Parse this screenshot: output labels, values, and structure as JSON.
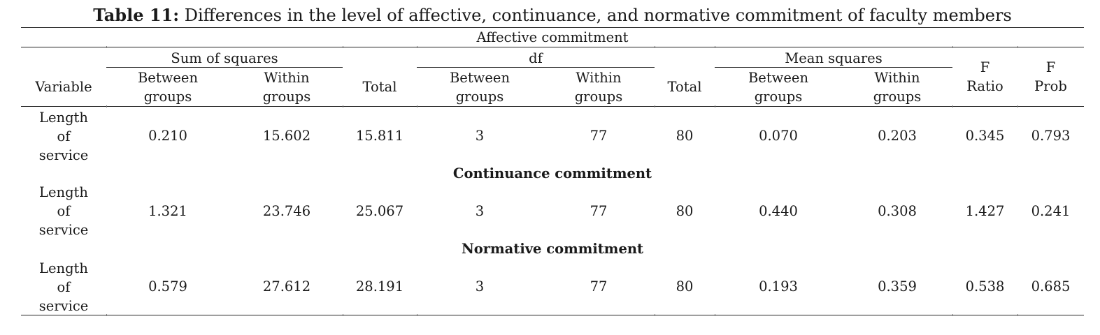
{
  "caption": {
    "label": "Table 11:",
    "text": "Differences in the level of affective, continuance, and normative commitment of faculty members"
  },
  "header": {
    "section_title": "Affective commitment",
    "variable": "Variable",
    "sum_of_squares": "Sum of squares",
    "df": "df",
    "mean_squares": "Mean squares",
    "between_1": "Between",
    "between_2": "groups",
    "within_1": "Within",
    "within_2": "groups",
    "total": "Total",
    "f_ratio_1": "F",
    "f_ratio_2": "Ratio",
    "f_prob_1": "F",
    "f_prob_2": "Prob"
  },
  "sections": [
    {
      "title": "",
      "row": {
        "variable": [
          "Length",
          "of",
          "service"
        ],
        "ss_between": "0.210",
        "ss_within": "15.602",
        "ss_total": "15.811",
        "df_between": "3",
        "df_within": "77",
        "df_total": "80",
        "ms_between": "0.070",
        "ms_within": "0.203",
        "f_ratio": "0.345",
        "f_prob": "0.793"
      }
    },
    {
      "title": "Continuance commitment",
      "row": {
        "variable": [
          "Length",
          "of",
          "service"
        ],
        "ss_between": "1.321",
        "ss_within": "23.746",
        "ss_total": "25.067",
        "df_between": "3",
        "df_within": "77",
        "df_total": "80",
        "ms_between": "0.440",
        "ms_within": "0.308",
        "f_ratio": "1.427",
        "f_prob": "0.241"
      }
    },
    {
      "title": "Normative commitment",
      "row": {
        "variable": [
          "Length",
          "of",
          "service"
        ],
        "ss_between": "0.579",
        "ss_within": "27.612",
        "ss_total": "28.191",
        "df_between": "3",
        "df_within": "77",
        "df_total": "80",
        "ms_between": "0.193",
        "ms_within": "0.359",
        "f_ratio": "0.538",
        "f_prob": "0.685"
      }
    }
  ]
}
